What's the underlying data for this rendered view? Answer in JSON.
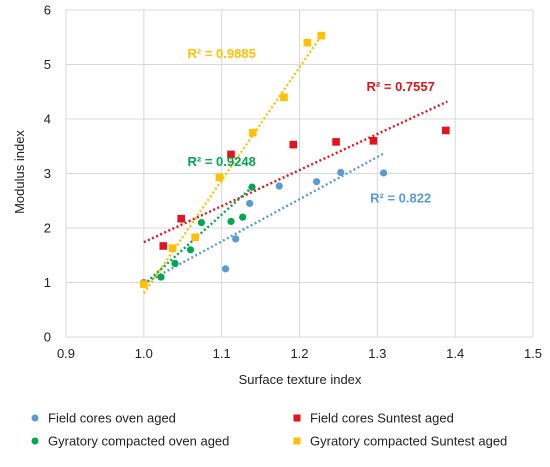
{
  "chart_data": {
    "type": "scatter",
    "title": "",
    "xlabel": "Surface texture index",
    "ylabel": "Modulus index",
    "xlim": [
      0.9,
      1.5
    ],
    "ylim": [
      0,
      6
    ],
    "xticks": [
      0.9,
      1.0,
      1.1,
      1.2,
      1.3,
      1.4,
      1.5
    ],
    "yticks": [
      0,
      1,
      2,
      3,
      4,
      5,
      6
    ],
    "xtick_labels": [
      "0.9",
      "1.0",
      "1.1",
      "1.2",
      "1.3",
      "1.4",
      "1.5"
    ],
    "ytick_labels": [
      "0",
      "1",
      "2",
      "3",
      "4",
      "5",
      "6"
    ],
    "grid": true,
    "legend_position": "bottom",
    "series": [
      {
        "name": "Field cores oven aged",
        "color": "#5b9bd5",
        "marker": "circle",
        "points": [
          [
            1.0,
            1.0
          ],
          [
            1.105,
            1.25
          ],
          [
            1.118,
            1.8
          ],
          [
            1.136,
            2.45
          ],
          [
            1.174,
            2.77
          ],
          [
            1.222,
            2.85
          ],
          [
            1.253,
            3.02
          ],
          [
            1.308,
            3.01
          ]
        ],
        "trend": {
          "x": [
            1.0,
            1.31
          ],
          "y": [
            0.98,
            3.38
          ]
        },
        "r2_label": "R² = 0.822",
        "r2_pos": [
          1.33,
          2.55
        ]
      },
      {
        "name": "Field cores Suntest aged",
        "color": "#e3141b",
        "marker": "square",
        "points": [
          [
            1.025,
            1.67
          ],
          [
            1.048,
            2.17
          ],
          [
            1.112,
            3.35
          ],
          [
            1.192,
            3.53
          ],
          [
            1.247,
            3.58
          ],
          [
            1.295,
            3.6
          ],
          [
            1.388,
            3.79
          ]
        ],
        "trend": {
          "x": [
            1.0,
            1.39
          ],
          "y": [
            1.74,
            4.32
          ]
        },
        "r2_label": "R² = 0.7557",
        "r2_pos": [
          1.33,
          4.6
        ]
      },
      {
        "name": "Gyratory compacted oven aged",
        "color": "#00a650",
        "marker": "circle",
        "points": [
          [
            1.0,
            0.98
          ],
          [
            1.022,
            1.1
          ],
          [
            1.04,
            1.35
          ],
          [
            1.06,
            1.6
          ],
          [
            1.074,
            2.1
          ],
          [
            1.112,
            2.12
          ],
          [
            1.127,
            2.2
          ],
          [
            1.139,
            2.75
          ]
        ],
        "trend": {
          "x": [
            1.0,
            1.14
          ],
          "y": [
            0.96,
            2.76
          ]
        },
        "r2_label": "R² = 0.9248",
        "r2_pos": [
          1.1,
          3.22
        ]
      },
      {
        "name": "Gyratory compacted Suntest aged",
        "color": "#ffc000",
        "marker": "square",
        "points": [
          [
            1.0,
            0.97
          ],
          [
            1.037,
            1.63
          ],
          [
            1.066,
            1.83
          ],
          [
            1.097,
            2.93
          ],
          [
            1.14,
            3.75
          ],
          [
            1.18,
            4.4
          ],
          [
            1.21,
            5.4
          ],
          [
            1.228,
            5.53
          ]
        ],
        "trend": {
          "x": [
            1.0,
            1.23
          ],
          "y": [
            0.8,
            5.57
          ]
        },
        "r2_label": "R² = 0.9885",
        "r2_pos": [
          1.1,
          5.2
        ]
      }
    ]
  }
}
